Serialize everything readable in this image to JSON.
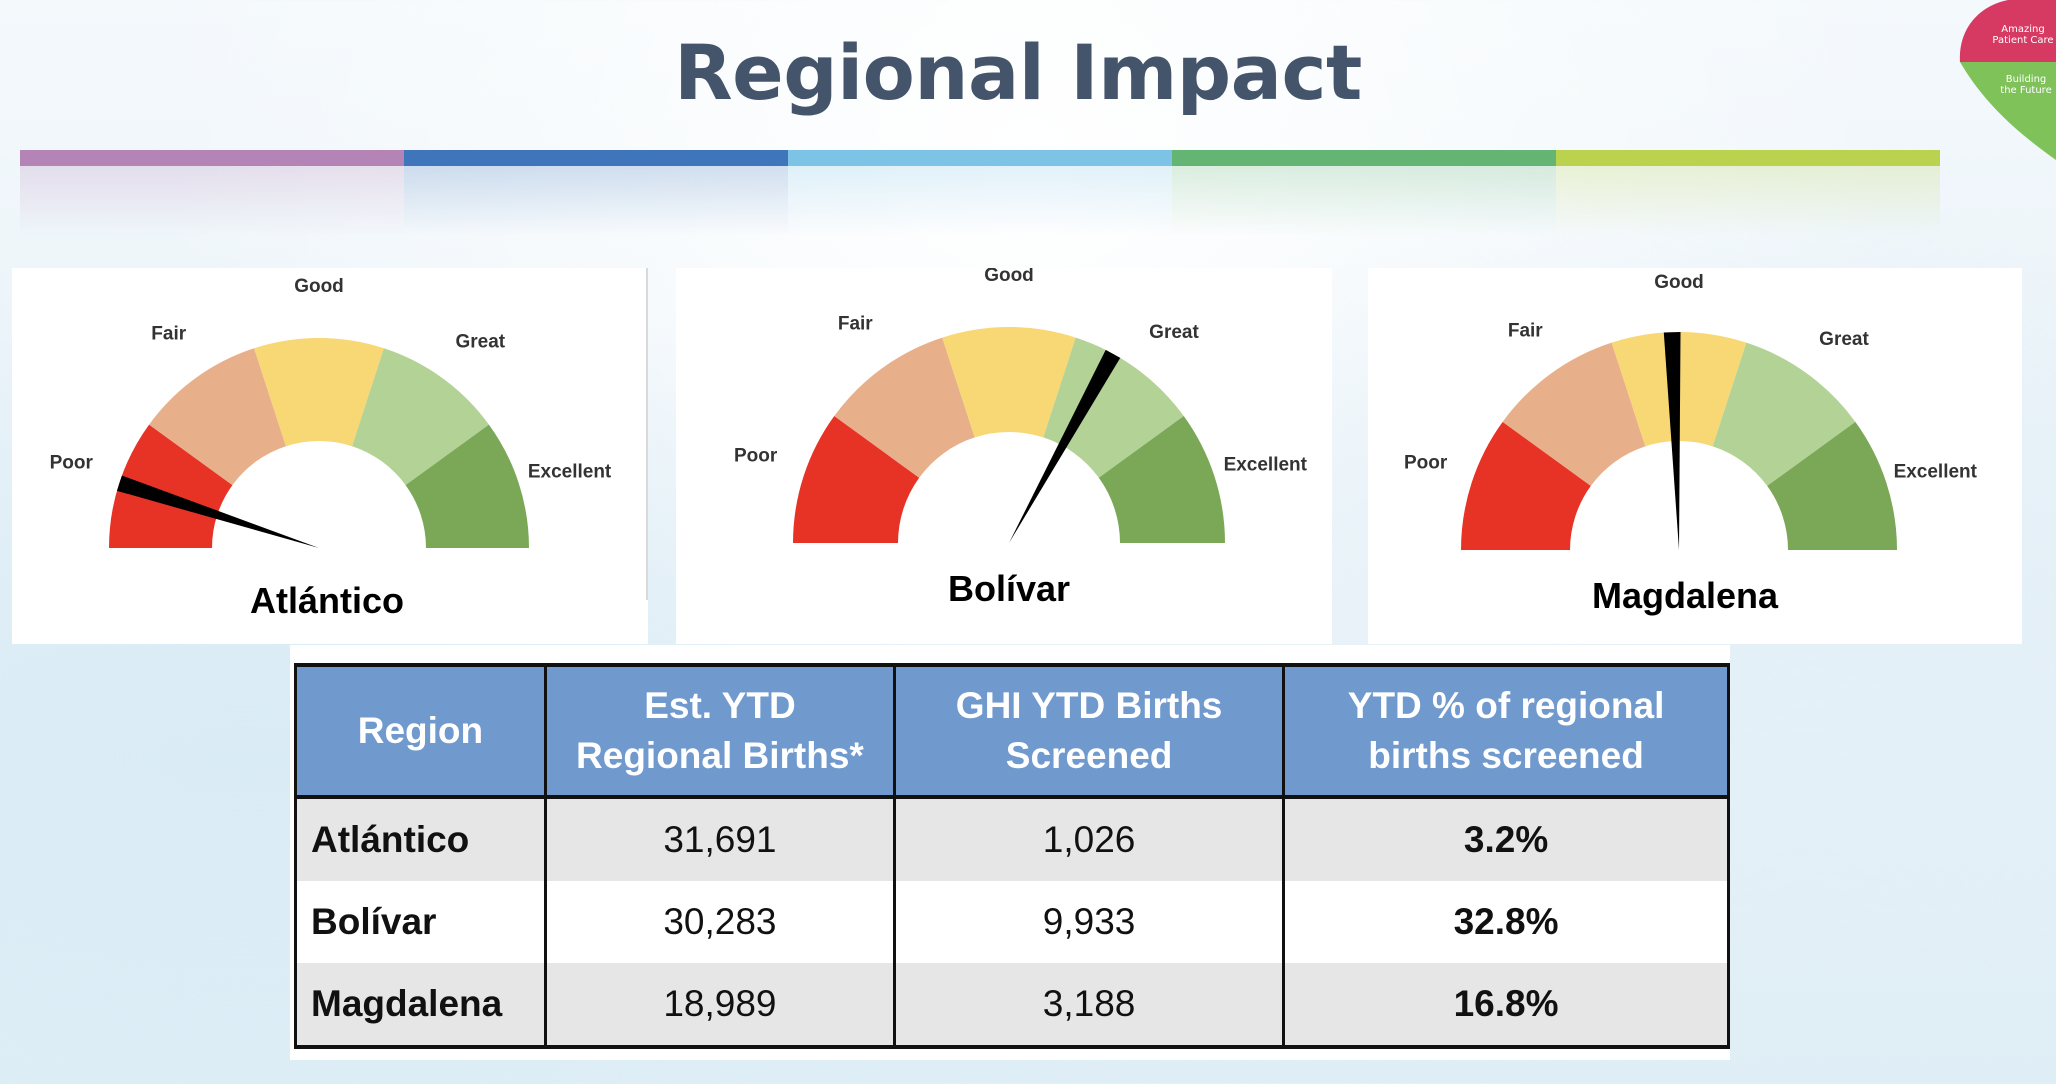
{
  "title": "Regional Impact",
  "colors": {
    "title": "#44546a",
    "bar": [
      "#b584b6",
      "#3f76bb",
      "#7cc3e6",
      "#64b574",
      "#bad24e"
    ],
    "gauge": [
      "#e73325",
      "#e8b08a",
      "#f7d875",
      "#b3d296",
      "#7aa857"
    ],
    "table_header": "#7099cd",
    "logo_top": "#d63a63",
    "logo_bottom": "#7fc25a"
  },
  "logo": {
    "line1a": "Amazing",
    "line1b": "Patient Care",
    "line2a": "Building",
    "line2b": "the Future"
  },
  "gauges": [
    {
      "name": "Atlántico",
      "needle_level": 0.1,
      "labels": [
        "Poor",
        "Fair",
        "Good",
        "Great",
        "Excellent"
      ]
    },
    {
      "name": "Bolívar",
      "needle_level": 0.66,
      "labels": [
        "Poor",
        "Fair",
        "Good",
        "Great",
        "Excellent"
      ]
    },
    {
      "name": "Magdalena",
      "needle_level": 0.49,
      "labels": [
        "Poor",
        "Fair",
        "Good",
        "Great",
        "Excellent"
      ]
    }
  ],
  "table": {
    "headers": [
      [
        "Region"
      ],
      [
        "Est. YTD",
        "Regional Births*"
      ],
      [
        "GHI YTD Births",
        "Screened"
      ],
      [
        "YTD % of regional",
        "births screened"
      ]
    ],
    "rows": [
      {
        "region": "Atlántico",
        "est": "31,691",
        "screened": "1,026",
        "pct": "3.2%"
      },
      {
        "region": "Bolívar",
        "est": "30,283",
        "screened": "9,933",
        "pct": "32.8%"
      },
      {
        "region": "Magdalena",
        "est": "18,989",
        "screened": "3,188",
        "pct": "16.8%"
      }
    ]
  }
}
